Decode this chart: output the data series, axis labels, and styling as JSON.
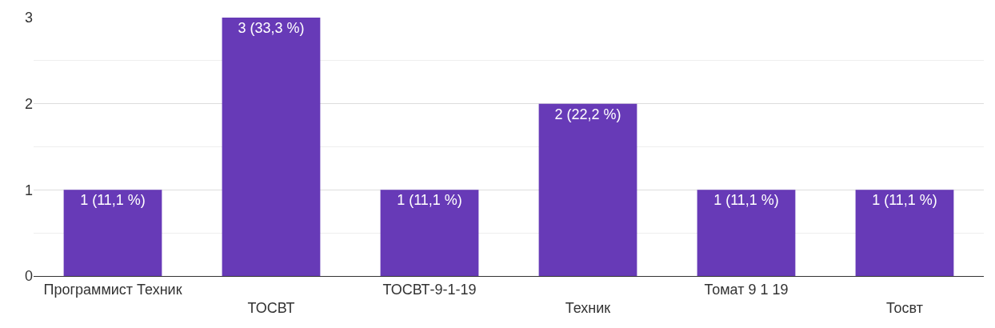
{
  "chart_data": {
    "type": "bar",
    "categories": [
      "Программист Техник",
      "ТОСВТ",
      "ТОСВТ-9-1-19",
      "Техник",
      "Томат 9 1 19",
      "Тосвт"
    ],
    "values": [
      1,
      3,
      1,
      2,
      1,
      1
    ],
    "value_labels": [
      "1 (11,1 %)",
      "3 (33,3 %)",
      "1 (11,1 %)",
      "2 (22,2 %)",
      "1 (11,1 %)",
      "1 (11,1 %)"
    ],
    "color": "#673ab7",
    "ylim": [
      0,
      3
    ],
    "yticks": [
      0,
      1,
      2,
      3
    ],
    "grid": "y",
    "legend": false
  }
}
